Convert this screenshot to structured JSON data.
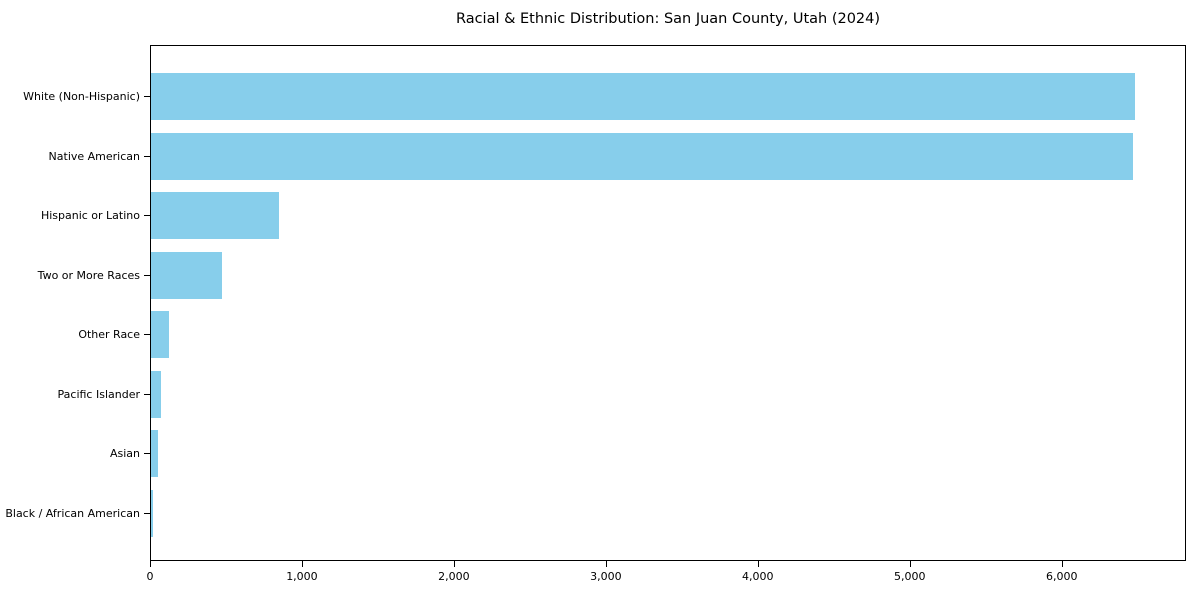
{
  "page": {
    "background": "#ffffff"
  },
  "chart_data": {
    "type": "bar",
    "orientation": "horizontal",
    "title": "Racial & Ethnic Distribution: San Juan County, Utah (2024)",
    "categories": [
      "White (Non-Hispanic)",
      "Native American",
      "Hispanic or Latino",
      "Two or More Races",
      "Other Race",
      "Pacific Islander",
      "Asian",
      "Black / African American"
    ],
    "values": [
      6490,
      6475,
      843,
      465,
      121,
      69,
      43,
      10
    ],
    "bar_color": "#87CEEB",
    "axis_color": "#000000",
    "text_color": "#000000",
    "xlabel": "",
    "ylabel": "",
    "xlim": [
      0,
      6818
    ],
    "xticks": [
      0,
      1000,
      2000,
      3000,
      4000,
      5000,
      6000
    ],
    "xtick_labels": [
      "0",
      "1,000",
      "2,000",
      "3,000",
      "4,000",
      "5,000",
      "6,000"
    ],
    "grid": false,
    "legend": null,
    "value_labels": false
  }
}
